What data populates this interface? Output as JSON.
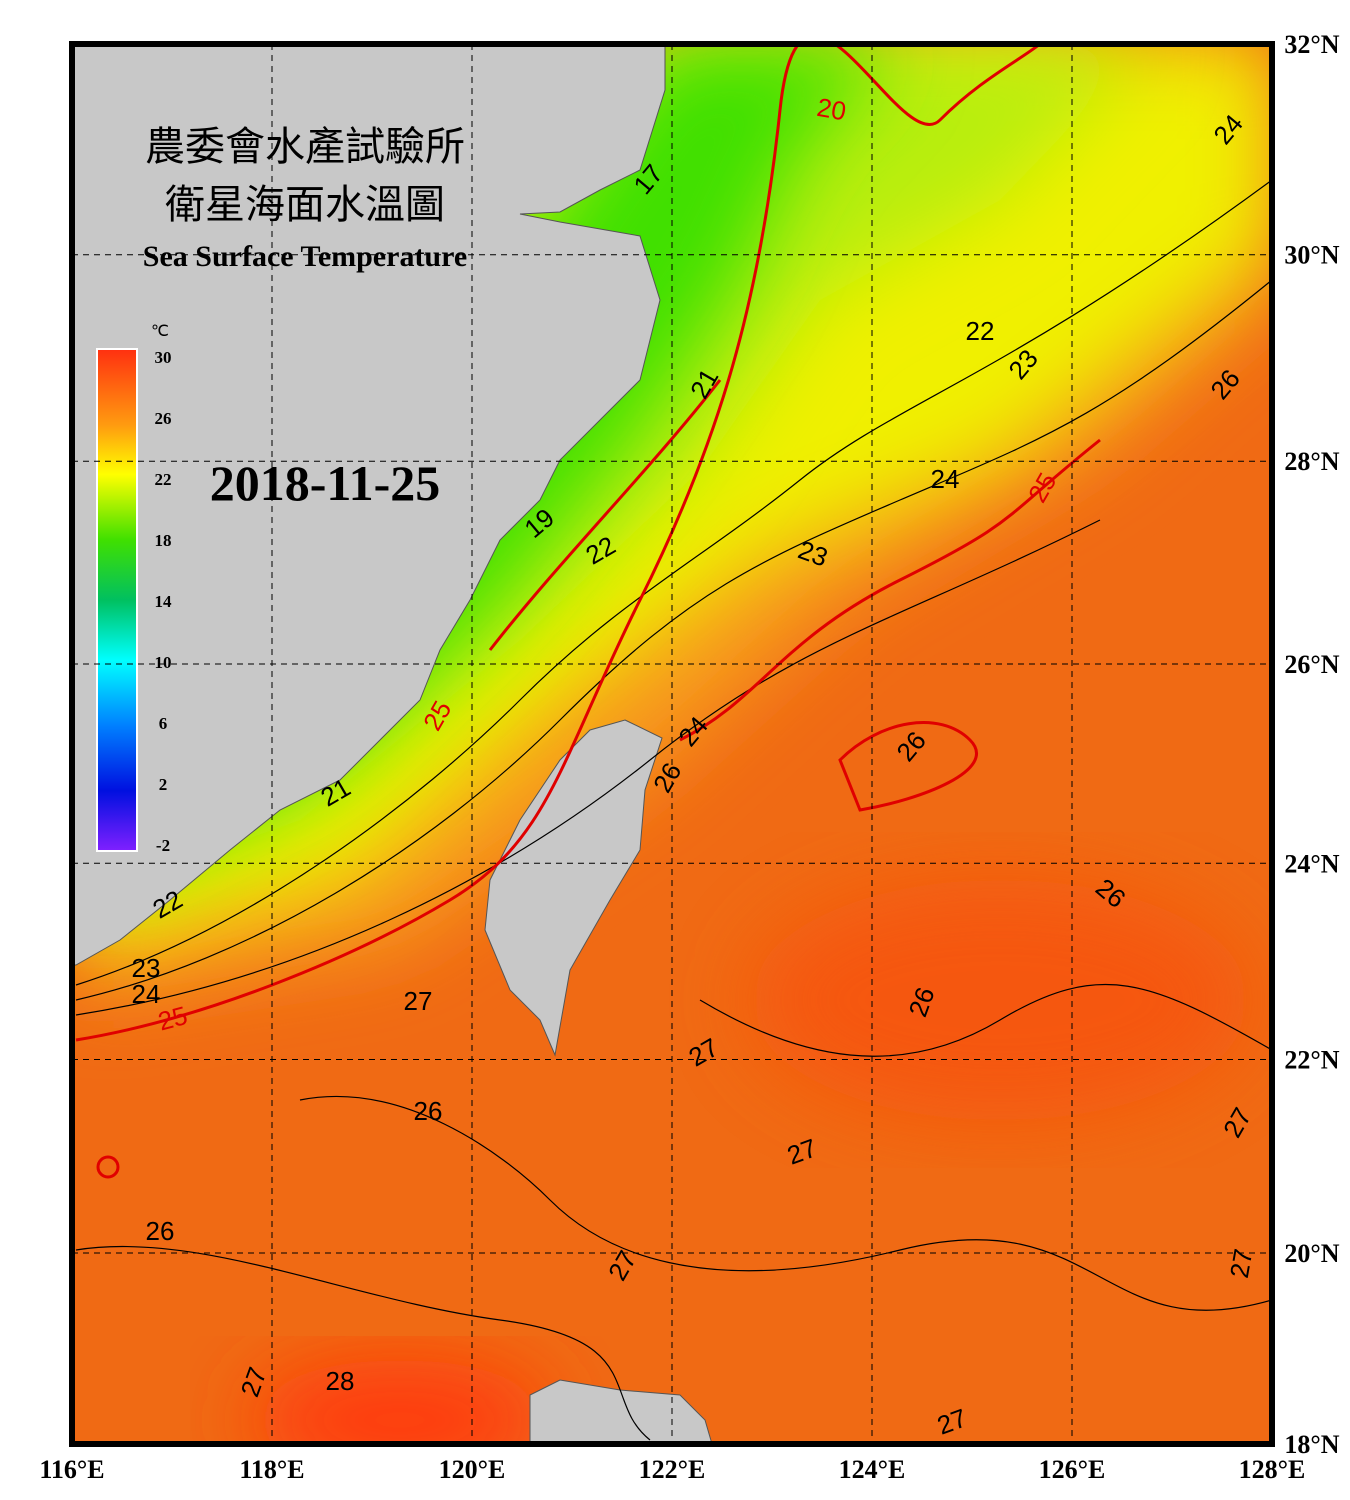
{
  "header": {
    "title_zh_1": "農委會水產試驗所",
    "title_zh_2": "衛星海面水溫圖",
    "title_en": "Sea Surface Temperature",
    "date": "2018-11-25"
  },
  "colorbar": {
    "unit": "℃",
    "ticks": [
      30,
      26,
      22,
      18,
      14,
      10,
      6,
      2,
      -2
    ]
  },
  "map": {
    "xlim": [
      116,
      128
    ],
    "ylim": [
      18,
      32
    ],
    "xticks": [
      {
        "value": 116,
        "label": "116°E"
      },
      {
        "value": 118,
        "label": "118°E"
      },
      {
        "value": 120,
        "label": "120°E"
      },
      {
        "value": 122,
        "label": "122°E"
      },
      {
        "value": 124,
        "label": "124°E"
      },
      {
        "value": 126,
        "label": "126°E"
      },
      {
        "value": 128,
        "label": "128°E"
      }
    ],
    "yticks": [
      {
        "value": 32,
        "label": "32°N"
      },
      {
        "value": 30,
        "label": "30°N"
      },
      {
        "value": 28,
        "label": "28°N"
      },
      {
        "value": 26,
        "label": "26°N"
      },
      {
        "value": 24,
        "label": "24°N"
      },
      {
        "value": 22,
        "label": "22°N"
      },
      {
        "value": 20,
        "label": "20°N"
      },
      {
        "value": 18,
        "label": "18°N"
      }
    ],
    "contour_labels": [
      17,
      20,
      24,
      22,
      23,
      26,
      21,
      25,
      24,
      19,
      22,
      23,
      25,
      24,
      26,
      26,
      21,
      22,
      23,
      24,
      25,
      27,
      26,
      27,
      26,
      27,
      27,
      27,
      26,
      27,
      28,
      26,
      27,
      27
    ]
  }
}
